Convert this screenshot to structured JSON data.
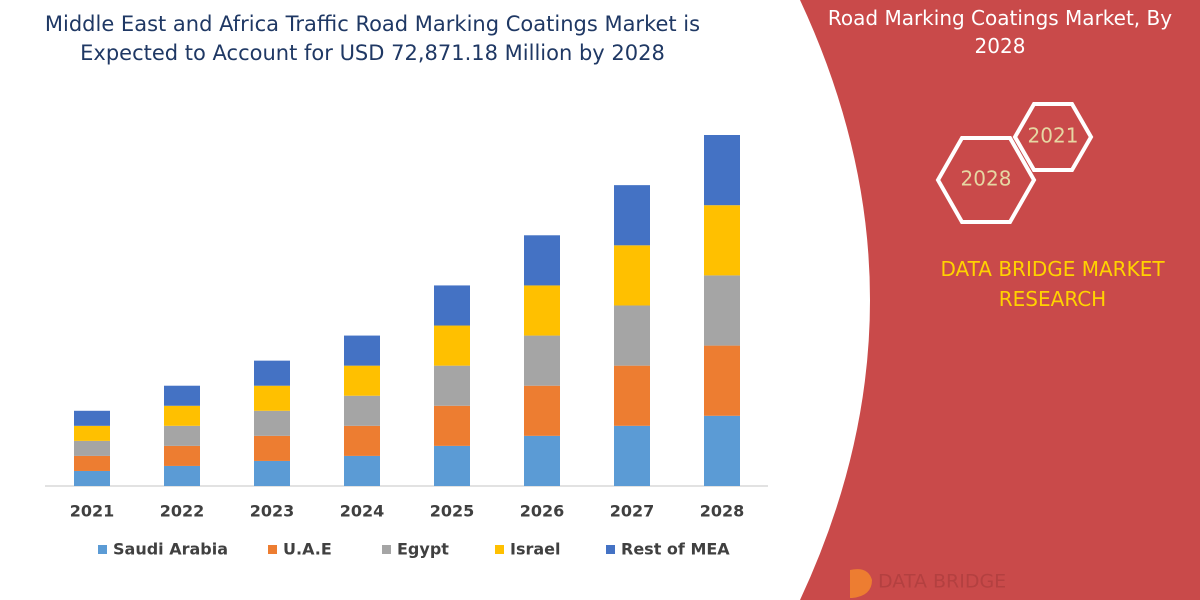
{
  "chart_data": {
    "type": "bar",
    "stacked": true,
    "title": "Middle East and Africa Traffic Road Marking Coatings Market is Expected to Account for USD 72,871.18 Million by 2028",
    "categories": [
      "2021",
      "2022",
      "2023",
      "2024",
      "2025",
      "2026",
      "2027",
      "2028"
    ],
    "series": [
      {
        "name": "Saudi Arabia",
        "color": "#5b9bd5",
        "values": [
          1.5,
          2,
          2.5,
          3,
          4,
          5,
          6,
          7
        ]
      },
      {
        "name": "U.A.E",
        "color": "#ed7d31",
        "values": [
          1.5,
          2,
          2.5,
          3,
          4,
          5,
          6,
          7
        ]
      },
      {
        "name": "Egypt",
        "color": "#a5a5a5",
        "values": [
          1.5,
          2,
          2.5,
          3,
          4,
          5,
          6,
          7
        ]
      },
      {
        "name": "Israel",
        "color": "#ffc000",
        "values": [
          1.5,
          2,
          2.5,
          3,
          4,
          5,
          6,
          7
        ]
      },
      {
        "name": "Rest of MEA",
        "color": "#4472c4",
        "values": [
          1.5,
          2,
          2.5,
          3,
          4,
          5,
          6,
          7
        ]
      }
    ],
    "legend": "bottom"
  },
  "side_panel": {
    "title": "Road Marking Coatings Market, By 2028",
    "hexagons": [
      "2021",
      "2028"
    ],
    "brand": "DATA BRIDGE MARKET RESEARCH",
    "logo": "DATA BRIDGE"
  }
}
